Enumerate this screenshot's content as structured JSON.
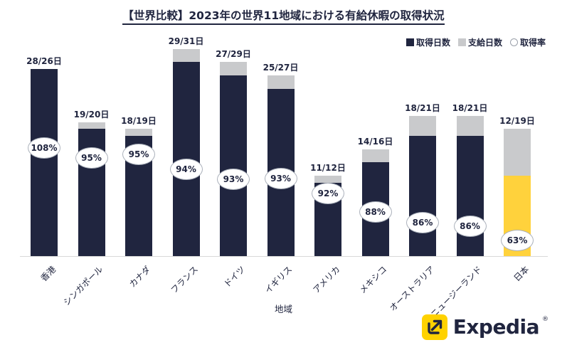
{
  "title": "【世界比較】2023年の世界11地域における有給休暇の取得状況",
  "legend": {
    "items": [
      {
        "label": "取得日数",
        "swatch": "square-dark"
      },
      {
        "label": "支給日数",
        "swatch": "square-gray"
      },
      {
        "label": "取得率",
        "swatch": "circle-white"
      }
    ]
  },
  "x_axis_title": "地域",
  "logo": {
    "brand": "Expedia",
    "registered_mark": "®"
  },
  "colors": {
    "taken": "#20253f",
    "given": "#c9cacc",
    "highlight": "#ffd23c",
    "text": "#20253f",
    "logo_yellow": "#ffd200"
  },
  "chart_data": {
    "type": "bar",
    "stacked": true,
    "title": "【世界比較】2023年の世界11地域における有給休暇の取得状況",
    "xlabel": "地域",
    "ylabel": "",
    "ylim": [
      0,
      31
    ],
    "grid": false,
    "legend_position": "top-right",
    "categories": [
      "香港",
      "シンガポール",
      "カナダ",
      "フランス",
      "ドイツ",
      "イギリス",
      "アメリカ",
      "メキシコ",
      "オーストラリア",
      "ニュージーランド",
      "日本"
    ],
    "series": [
      {
        "name": "取得日数",
        "values": [
          28,
          19,
          18,
          29,
          27,
          25,
          11,
          14,
          18,
          18,
          12
        ]
      },
      {
        "name": "支給日数",
        "values": [
          26,
          20,
          19,
          31,
          29,
          27,
          12,
          16,
          21,
          21,
          19
        ]
      }
    ],
    "acquisition_rate_percent": [
      108,
      95,
      95,
      94,
      93,
      93,
      92,
      88,
      86,
      86,
      63
    ],
    "bar_value_labels": [
      "28/26日",
      "19/20日",
      "18/19日",
      "29/31日",
      "27/29日",
      "25/27日",
      "11/12日",
      "14/16日",
      "18/21日",
      "18/21日",
      "12/19日"
    ],
    "rate_labels": [
      "108%",
      "95%",
      "95%",
      "94%",
      "93%",
      "93%",
      "92%",
      "88%",
      "86%",
      "86%",
      "63%"
    ],
    "highlight_category": "日本"
  }
}
